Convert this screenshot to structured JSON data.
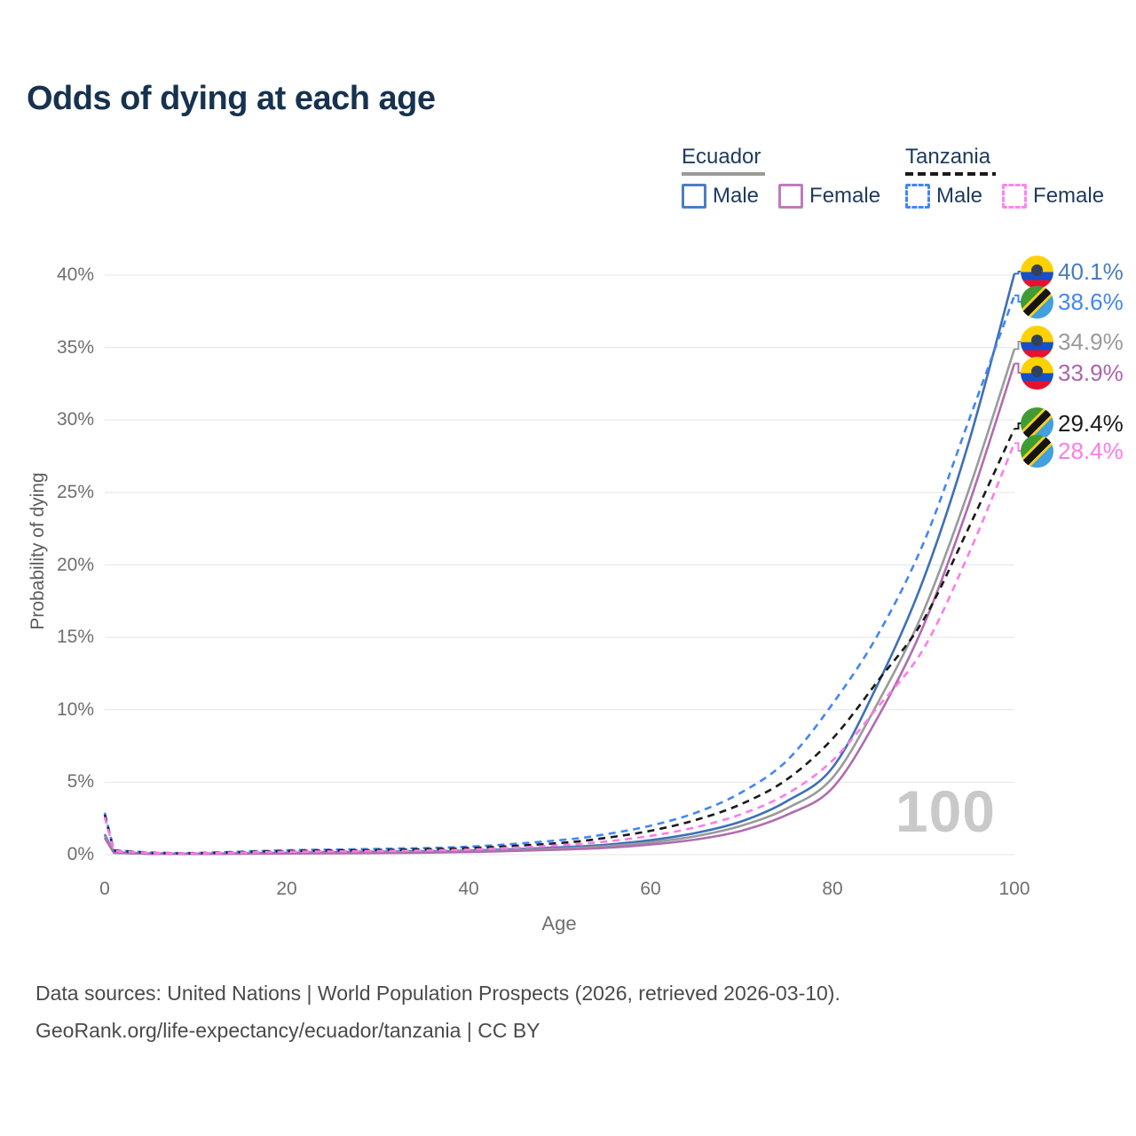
{
  "title": "Odds of dying at each age",
  "watermark": "100",
  "legend": {
    "groups": [
      {
        "name": "Ecuador",
        "line_style": "solid",
        "underline_color": "#9a9a9a",
        "items": [
          {
            "label": "Male",
            "color": "#4c7ec0"
          },
          {
            "label": "Female",
            "color": "#bd7cbd"
          }
        ]
      },
      {
        "name": "Tanzania",
        "line_style": "dashed",
        "underline_color": "#1a1a1a",
        "items": [
          {
            "label": "Male",
            "color": "#4286f5"
          },
          {
            "label": "Female",
            "color": "#ff85e8"
          }
        ]
      }
    ]
  },
  "chart_data": {
    "type": "line",
    "title": "Odds of dying at each age",
    "xlabel": "Age",
    "ylabel": "Probability of dying",
    "x_range": [
      0,
      100
    ],
    "y_range_percent": [
      0,
      40
    ],
    "grid": "horizontal-only",
    "x_ticks": [
      "0",
      "20",
      "40",
      "60",
      "80",
      "100"
    ],
    "x_tick_values": [
      0,
      20,
      40,
      60,
      80,
      100
    ],
    "y_tick_labels": [
      "0%",
      "5%",
      "10%",
      "15%",
      "20%",
      "25%",
      "30%",
      "35%",
      "40%"
    ],
    "y_tick_values": [
      0,
      5,
      10,
      15,
      20,
      25,
      30,
      35,
      40
    ],
    "x": [
      0,
      1,
      5,
      10,
      20,
      30,
      40,
      50,
      55,
      60,
      65,
      70,
      75,
      80,
      85,
      90,
      95,
      100
    ],
    "unit": "percent",
    "series": [
      {
        "id": "ecuador_male",
        "name": "Ecuador Male",
        "country": "Ecuador",
        "dash": "solid",
        "color": "#3d6fb8",
        "label_color": "#4a7cbf",
        "end_label": "40.1%",
        "end_value": 40.1,
        "values": [
          1.4,
          0.15,
          0.07,
          0.06,
          0.13,
          0.2,
          0.28,
          0.5,
          0.68,
          1.0,
          1.5,
          2.3,
          3.7,
          6.0,
          11.8,
          19.0,
          28.5,
          40.1
        ]
      },
      {
        "id": "tanzania_male",
        "name": "Tanzania Male",
        "country": "Tanzania",
        "dash": "dashed",
        "color": "#4286f5",
        "label_color": "#4286f5",
        "end_label": "38.6%",
        "end_value": 38.6,
        "values": [
          2.9,
          0.3,
          0.15,
          0.12,
          0.3,
          0.4,
          0.55,
          1.0,
          1.4,
          2.0,
          2.9,
          4.3,
          6.5,
          10.4,
          15.2,
          21.5,
          30.0,
          38.6
        ]
      },
      {
        "id": "ecuador_both",
        "name": "Ecuador",
        "country": "Ecuador",
        "dash": "solid",
        "color": "#9a9a9a",
        "label_color": "#9a9a9a",
        "end_label": "34.9%",
        "end_value": 34.9,
        "values": [
          1.3,
          0.13,
          0.06,
          0.05,
          0.1,
          0.15,
          0.23,
          0.42,
          0.57,
          0.85,
          1.28,
          2.0,
          3.2,
          5.3,
          10.5,
          16.8,
          25.2,
          34.9
        ]
      },
      {
        "id": "ecuador_female",
        "name": "Ecuador Female",
        "country": "Ecuador",
        "dash": "solid",
        "color": "#b06cb0",
        "label_color": "#ac63ac",
        "end_label": "33.9%",
        "end_value": 33.9,
        "values": [
          1.15,
          0.12,
          0.06,
          0.05,
          0.08,
          0.11,
          0.18,
          0.35,
          0.47,
          0.7,
          1.05,
          1.65,
          2.75,
          4.6,
          9.5,
          15.8,
          24.2,
          33.9
        ]
      },
      {
        "id": "tanzania_both",
        "name": "Tanzania",
        "country": "Tanzania",
        "dash": "dashed",
        "color": "#1a1a1a",
        "label_color": "#1a1a1a",
        "end_label": "29.4%",
        "end_value": 29.4,
        "values": [
          2.75,
          0.28,
          0.13,
          0.1,
          0.25,
          0.32,
          0.45,
          0.8,
          1.15,
          1.65,
          2.4,
          3.5,
          5.2,
          8.0,
          12.0,
          16.2,
          22.6,
          29.4
        ]
      },
      {
        "id": "tanzania_female",
        "name": "Tanzania Female",
        "country": "Tanzania",
        "dash": "dashed",
        "color": "#ff7be9",
        "label_color": "#ff7be9",
        "end_label": "28.4%",
        "end_value": 28.4,
        "values": [
          2.6,
          0.25,
          0.12,
          0.09,
          0.2,
          0.25,
          0.35,
          0.65,
          0.9,
          1.3,
          1.9,
          2.8,
          4.2,
          6.5,
          10.2,
          14.2,
          20.8,
          28.4
        ]
      }
    ],
    "legend_position": "top-right",
    "annotations": {
      "year_watermark": "100"
    }
  },
  "footer": {
    "line1": "Data sources: United Nations | World Population Prospects (2026, retrieved 2026-03-10).",
    "line2": "GeoRank.org/life-expectancy/ecuador/tanzania | CC BY"
  }
}
